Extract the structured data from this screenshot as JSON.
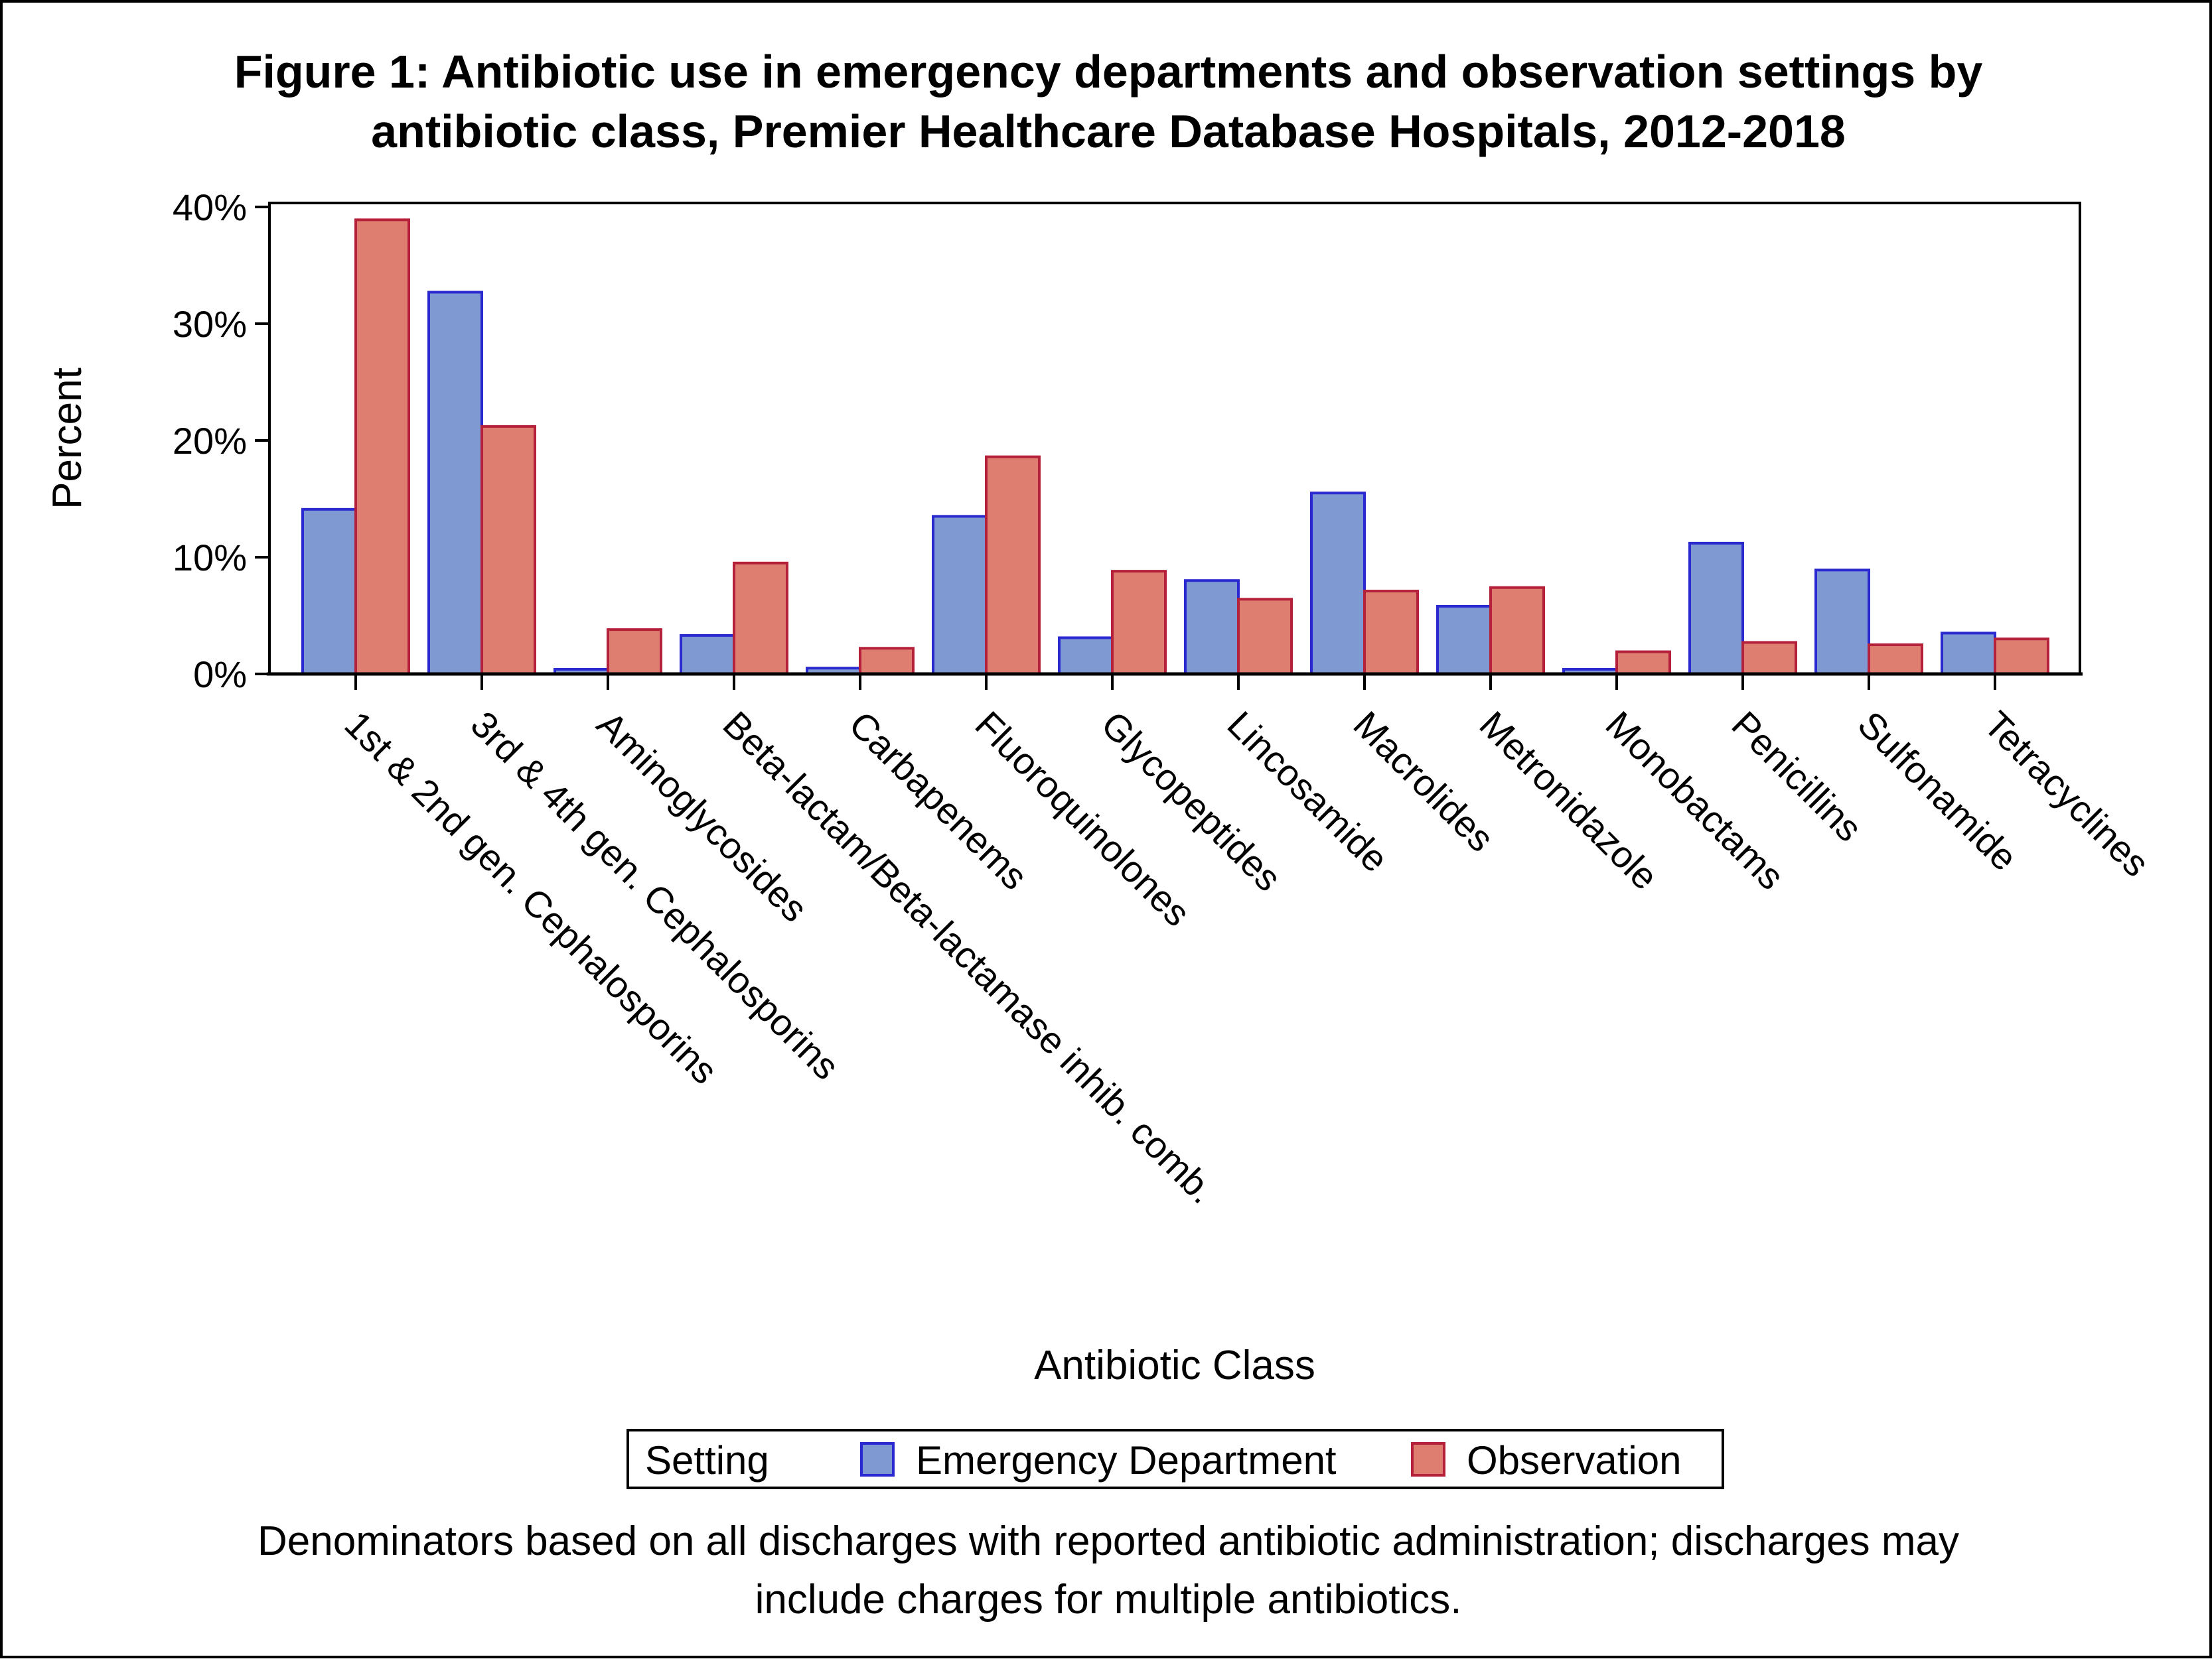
{
  "title": {
    "line1": "Figure 1: Antibiotic use in emergency departments and observation settings by",
    "line2": "antibiotic class, Premier Healthcare Database Hospitals, 2012-2018"
  },
  "footnote": {
    "line1": "Denominators based on all discharges with reported antibiotic administration; discharges may",
    "line2": "include charges for multiple antibiotics."
  },
  "legend": {
    "title": "Setting"
  },
  "colors": {
    "ed_fill": "#7f9ad2",
    "ed_stroke": "#2a2ad0",
    "obs_fill": "#dd7e70",
    "obs_stroke": "#b5213a"
  },
  "chart_data": {
    "type": "bar",
    "xlabel": "Antibiotic Class",
    "ylabel": "Percent",
    "ylim": [
      0,
      40
    ],
    "yticks": [
      0,
      10,
      20,
      30,
      40
    ],
    "ytick_labels": [
      "0%",
      "10%",
      "20%",
      "30%",
      "40%"
    ],
    "grid": false,
    "legend_position": "bottom",
    "categories": [
      "1st & 2nd gen. Cephalosporins",
      "3rd & 4th gen. Cephalosporins",
      "Aminoglycosides",
      "Beta-lactam/Beta-lactamase inhib. comb.",
      "Carbapenems",
      "Fluoroquinolones",
      "Glycopeptides",
      "Lincosamide",
      "Macrolides",
      "Metronidazole",
      "Monobactams",
      "Penicillins",
      "Sulfonamide",
      "Tetracyclines"
    ],
    "series": [
      {
        "name": "Emergency Department",
        "values": [
          14.1,
          32.7,
          0.4,
          3.3,
          0.5,
          13.5,
          3.1,
          8.0,
          15.5,
          5.8,
          0.4,
          11.2,
          8.9,
          3.5
        ]
      },
      {
        "name": "Observation",
        "values": [
          38.9,
          21.2,
          3.8,
          9.5,
          2.2,
          18.6,
          8.8,
          6.4,
          7.1,
          7.4,
          1.9,
          2.7,
          2.5,
          3.0
        ]
      }
    ]
  }
}
